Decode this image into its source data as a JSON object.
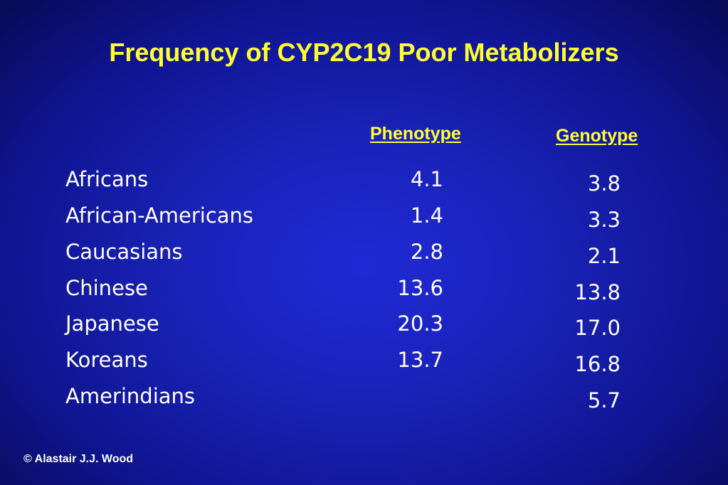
{
  "title": "Frequency of CYP2C19 Poor Metabolizers",
  "table": {
    "headers": {
      "phenotype": "Phenotype",
      "genotype": "Genotype"
    },
    "rows": [
      {
        "population": "Africans",
        "phenotype": "4.1",
        "genotype": "3.8"
      },
      {
        "population": "African-Americans",
        "phenotype": "1.4",
        "genotype": "3.3"
      },
      {
        "population": "Caucasians",
        "phenotype": "2.8",
        "genotype": "2.1"
      },
      {
        "population": "Chinese",
        "phenotype": "13.6",
        "genotype": "13.8"
      },
      {
        "population": "Japanese",
        "phenotype": "20.3",
        "genotype": "17.0"
      },
      {
        "population": "Koreans",
        "phenotype": "13.7",
        "genotype": "16.8"
      },
      {
        "population": "Amerindians",
        "phenotype": "",
        "genotype": "5.7"
      }
    ]
  },
  "footer": {
    "copyright": "© Alastair J.J. Wood"
  },
  "colors": {
    "background": "#1a22b8",
    "title": "#ffff33",
    "text": "#ffffff"
  }
}
